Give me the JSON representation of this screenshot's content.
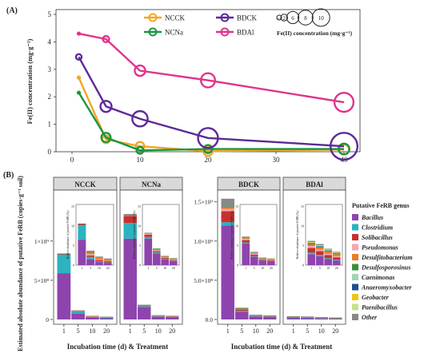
{
  "chart_data": [
    {
      "type": "line",
      "panel_label": "(A)",
      "ylabel": "Fe(II) concentration (mg·g⁻¹)",
      "xlim": [
        0,
        40
      ],
      "ylim": [
        0,
        5
      ],
      "xticks": [
        0,
        10,
        20,
        30,
        40
      ],
      "yticks": [
        0,
        1,
        2,
        3,
        4,
        5
      ],
      "legend_placement": "top-right",
      "series": [
        {
          "name": "NCCK",
          "color": "#f5a623",
          "x": [
            1,
            5,
            10,
            20,
            40
          ],
          "y": [
            2.7,
            0.45,
            0.2,
            0.02,
            0.08
          ],
          "size": [
            0.5,
            1.5,
            1.8,
            2.0,
            2.2
          ]
        },
        {
          "name": "NCNa",
          "color": "#1a9641",
          "x": [
            1,
            5,
            10,
            20,
            40
          ],
          "y": [
            2.15,
            0.52,
            0.05,
            0.1,
            0.1
          ],
          "size": [
            0.5,
            2.0,
            1.2,
            1.6,
            2.5
          ]
        },
        {
          "name": "BDCK",
          "color": "#5b2a9a",
          "x": [
            1,
            5,
            10,
            20,
            40
          ],
          "y": [
            3.45,
            1.65,
            1.2,
            0.5,
            0.2
          ],
          "size": [
            0.8,
            2.6,
            4.0,
            5.5,
            7.8
          ]
        },
        {
          "name": "BDAl",
          "color": "#e0348a",
          "x": [
            1,
            5,
            10,
            20,
            40
          ],
          "y": [
            4.3,
            4.1,
            2.95,
            2.6,
            1.8
          ],
          "size": [
            0.5,
            1.0,
            2.4,
            3.6,
            5.2
          ]
        }
      ],
      "size_legend": {
        "title": "Fe(II) concentration (mg·g⁻¹)",
        "values": [
          0.5,
          2,
          6,
          8,
          10
        ],
        "labels": [
          "0.5",
          "2",
          "6",
          "8",
          "10"
        ]
      }
    },
    {
      "type": "bar",
      "stacked": true,
      "panel_label": "(B)",
      "ylabel": "Estimated absolute abundance of putative FeRB (copies·g⁻¹ soil)",
      "xlabel": "Incubation time (d) & Treatment",
      "categories": [
        "1",
        "5",
        "10",
        "20"
      ],
      "legend_title": "Putative FeRB genus",
      "genera": [
        {
          "name": "Bacillus",
          "color": "#8e44ad"
        },
        {
          "name": "Clostridium",
          "color": "#2bb3c0"
        },
        {
          "name": "Solibacillus",
          "color": "#c9302c"
        },
        {
          "name": "Pseudomonas",
          "color": "#f4a6b5"
        },
        {
          "name": "Desulfitobacterium",
          "color": "#e67e22"
        },
        {
          "name": "Desulfosporosinus",
          "color": "#3a8f3a"
        },
        {
          "name": "Caenimonas",
          "color": "#9fd6b0"
        },
        {
          "name": "Anaeromyxobacter",
          "color": "#1f4e8c"
        },
        {
          "name": "Geobacter",
          "color": "#f1c40f"
        },
        {
          "name": "Paenibacillus",
          "color": "#c8e089"
        },
        {
          "name": "Other",
          "color": "#888888"
        }
      ],
      "groups": [
        {
          "axis": "left",
          "panels": [
            {
              "name": "NCCK",
              "stacks": [
                [
                  590000000.0,
                  240000000.0,
                  10000000.0,
                  0,
                  0,
                  0,
                  0,
                  0,
                  0,
                  0,
                  0
                ],
                [
                  75000000.0,
                  25000000.0,
                  5000000.0,
                  4000000.0,
                  4000000.0,
                  2000000.0,
                  0,
                  0,
                  0,
                  0,
                  2000000.0
                ],
                [
                  25000000.0,
                  6000000.0,
                  4000000.0,
                  3000000.0,
                  6000000.0,
                  1000000.0,
                  0,
                  0,
                  0,
                  0,
                  2000000.0
                ],
                [
                  18000000.0,
                  3000000.0,
                  5000000.0,
                  2000000.0,
                  4000000.0,
                  1000000.0,
                  0,
                  0,
                  0,
                  0,
                  2000000.0
                ]
              ],
              "inset": {
                "ylabel": "Relative abundance of putative FeRB (‰)",
                "stacks": [
                  [
                    6.5,
                    3.8,
                    0.3,
                    0,
                    0,
                    0,
                    0,
                    0,
                    0,
                    0,
                    0
                  ],
                  [
                    1.5,
                    0.6,
                    0.4,
                    0.3,
                    0.5,
                    0.2,
                    0,
                    0,
                    0,
                    0,
                    0.2
                  ],
                  [
                    0.8,
                    0.2,
                    0.3,
                    0.2,
                    0.4,
                    0.1,
                    0,
                    0,
                    0,
                    0,
                    0.2
                  ],
                  [
                    0.6,
                    0.1,
                    0.3,
                    0.1,
                    0.3,
                    0.1,
                    0,
                    0,
                    0,
                    0,
                    0.2
                  ]
                ]
              }
            },
            {
              "name": "NCNa",
              "stacks": [
                [
                  1030000000.0,
                  200000000.0,
                  90000000.0,
                  5000000.0,
                  5000000.0,
                  5000000.0,
                  0,
                  0,
                  0,
                  0,
                  10000000.0
                ],
                [
                  160000000.0,
                  10000000.0,
                  10000000.0,
                  2000000.0,
                  2000000.0,
                  1000000.0,
                  0,
                  0,
                  0,
                  0,
                  2000000.0
                ],
                [
                  35000000.0,
                  5000000.0,
                  5000000.0,
                  2000000.0,
                  5000000.0,
                  1000000.0,
                  0,
                  0,
                  0,
                  0,
                  2000000.0
                ],
                [
                  30000000.0,
                  4000000.0,
                  4000000.0,
                  2000000.0,
                  4000000.0,
                  1000000.0,
                  0,
                  0,
                  0,
                  0,
                  2000000.0
                ]
              ],
              "inset": {
                "ylabel": "Relative abundance of putative FeRB (‰)",
                "stacks": [
                  [
                    6.8,
                    0.4,
                    0.6,
                    0.2,
                    0.1,
                    0.1,
                    0,
                    0,
                    0,
                    0,
                    0.1
                  ],
                  [
                    3.0,
                    0.3,
                    0.3,
                    0.2,
                    0.3,
                    0.1,
                    0,
                    0,
                    0,
                    0,
                    0.1
                  ],
                  [
                    1.5,
                    0.1,
                    0.3,
                    0.1,
                    0.2,
                    0.1,
                    0,
                    0,
                    0,
                    0,
                    0.1
                  ],
                  [
                    1.0,
                    0.1,
                    0.2,
                    0.1,
                    0.2,
                    0.1,
                    0,
                    0,
                    0,
                    0,
                    0.1
                  ]
                ]
              }
            }
          ]
        },
        {
          "axis": "right",
          "panels": [
            {
              "name": "BDCK",
              "stacks": [
                [
                  1200000000.0,
                  40000000.0,
                  140000000.0,
                  30000000.0,
                  20000000.0,
                  10000000.0,
                  0,
                  0,
                  0,
                  0,
                  100000000.0
                ],
                [
                  100000000.0,
                  10000000.0,
                  20000000.0,
                  5000000.0,
                  5000000.0,
                  3000000.0,
                  0,
                  0,
                  0,
                  0,
                  7000000.0
                ],
                [
                  40000000.0,
                  3000000.0,
                  5000000.0,
                  2000000.0,
                  5000000.0,
                  1000000.0,
                  0,
                  0,
                  0,
                  0,
                  4000000.0
                ],
                [
                  35000000.0,
                  3000000.0,
                  4000000.0,
                  2000000.0,
                  4000000.0,
                  1000000.0,
                  0,
                  0,
                  0,
                  0,
                  3000000.0
                ]
              ],
              "inset": {
                "ylabel": "Relative abundance of putative FeRB (‰)",
                "stacks": [
                  [
                    5.5,
                    0.3,
                    0.6,
                    0.3,
                    0.2,
                    0.1,
                    0,
                    0,
                    0,
                    0,
                    0.3
                  ],
                  [
                    2.2,
                    0.1,
                    0.4,
                    0.2,
                    0.2,
                    0.1,
                    0,
                    0,
                    0,
                    0,
                    0.2
                  ],
                  [
                    1.2,
                    0.1,
                    0.2,
                    0.1,
                    0.2,
                    0.05,
                    0,
                    0,
                    0,
                    0,
                    0.1
                  ],
                  [
                    1.0,
                    0.05,
                    0.2,
                    0.1,
                    0.2,
                    0.05,
                    0,
                    0,
                    0,
                    0,
                    0.1
                  ]
                ]
              }
            },
            {
              "name": "BDAl",
              "stacks": [
                [
                  22000000.0,
                  3000000.0,
                  8000000.0,
                  2000000.0,
                  1000000.0,
                  1000000.0,
                  0,
                  0,
                  0,
                  0,
                  3000000.0
                ],
                [
                  20000000.0,
                  3000000.0,
                  8000000.0,
                  2000000.0,
                  1000000.0,
                  1000000.0,
                  0,
                  0,
                  0,
                  0,
                  3000000.0
                ],
                [
                  15000000.0,
                  2000000.0,
                  6000000.0,
                  2000000.0,
                  2000000.0,
                  1000000.0,
                  0,
                  0,
                  0,
                  0,
                  2000000.0
                ],
                [
                  12000000.0,
                  2000000.0,
                  5000000.0,
                  1000000.0,
                  2000000.0,
                  1000000.0,
                  0,
                  0,
                  0,
                  0,
                  2000000.0
                ]
              ],
              "inset": {
                "ylabel": "Relative abundance of putative FeRB (‰)",
                "stacks": [
                  [
                    2.8,
                    0.4,
                    1.2,
                    0.5,
                    0.4,
                    0.2,
                    0.1,
                    0.1,
                    0.1,
                    0.1,
                    0.3
                  ],
                  [
                    2.3,
                    0.3,
                    1.0,
                    0.4,
                    0.5,
                    0.2,
                    0.1,
                    0.1,
                    0.1,
                    0.1,
                    0.3
                  ],
                  [
                    1.6,
                    0.2,
                    0.8,
                    0.3,
                    0.6,
                    0.2,
                    0.1,
                    0.05,
                    0.1,
                    0.05,
                    0.2
                  ],
                  [
                    1.2,
                    0.2,
                    0.6,
                    0.3,
                    0.5,
                    0.2,
                    0.05,
                    0.05,
                    0.05,
                    0.05,
                    0.2
                  ]
                ]
              }
            }
          ]
        }
      ],
      "left_axis": {
        "ylim": [
          0,
          1650000000.0
        ],
        "yticks": [
          0,
          500000000.0,
          1000000000.0
        ],
        "ytick_labels": [
          "0",
          "5×10⁸",
          "1×10⁹"
        ]
      },
      "right_axis": {
        "ylim": [
          0,
          1650000000.0
        ],
        "yticks": [
          0,
          500000000.0,
          1000000000.0,
          1500000000.0
        ],
        "ytick_labels": [
          "0.0",
          "5.0×10⁸",
          "1.0×10⁹",
          "1.5×10⁹"
        ]
      },
      "inset_axis": {
        "yticks": [
          0,
          5,
          10,
          15
        ],
        "ytick_labels": [
          "0",
          "5",
          "10",
          "15"
        ]
      }
    }
  ]
}
